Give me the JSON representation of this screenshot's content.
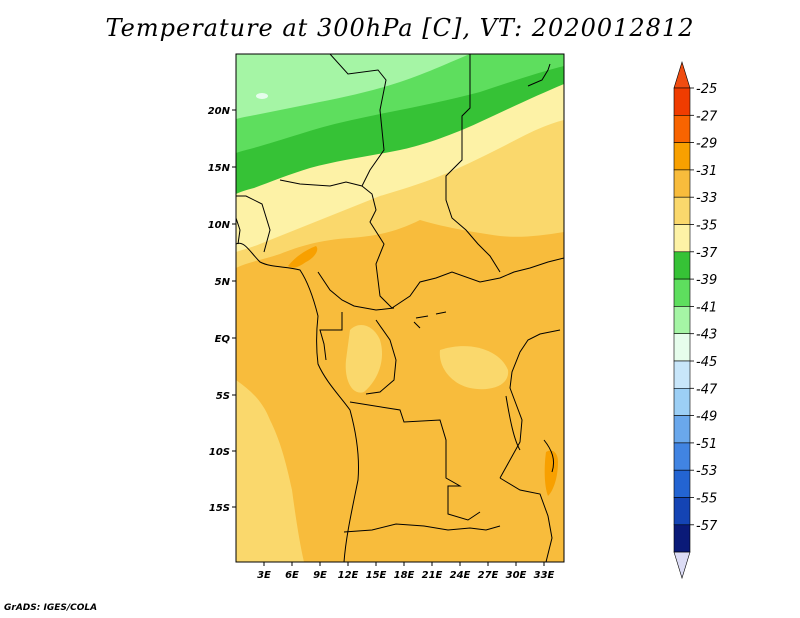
{
  "title": "Temperature at 300hPa [C], VT: 2020012812",
  "footer": "GrADS: IGES/COLA",
  "map": {
    "lat_labels": [
      "20N",
      "15N",
      "10N",
      "5N",
      "EQ",
      "5S",
      "10S",
      "15S"
    ],
    "lon_labels": [
      "3E",
      "6E",
      "9E",
      "12E",
      "15E",
      "18E",
      "21E",
      "24E",
      "27E",
      "30E",
      "33E"
    ]
  },
  "colorbar": {
    "labels": [
      "-25",
      "-27",
      "-29",
      "-31",
      "-33",
      "-35",
      "-37",
      "-39",
      "-41",
      "-43",
      "-45",
      "-47",
      "-49",
      "-51",
      "-53",
      "-55",
      "-57"
    ],
    "colors": [
      "#f03c00",
      "#f86400",
      "#f8a000",
      "#f8bc3c",
      "#fad86c",
      "#fdf2a6",
      "#36c236",
      "#5ede5e",
      "#a5f5a5",
      "#e6fdec",
      "#c8e6fa",
      "#9ccff5",
      "#6aa8ec",
      "#4184e2",
      "#2364d2",
      "#1444b4",
      "#0a1a78"
    ],
    "top_color": "#f04c10",
    "bottom_color": "#dcdcf5"
  }
}
